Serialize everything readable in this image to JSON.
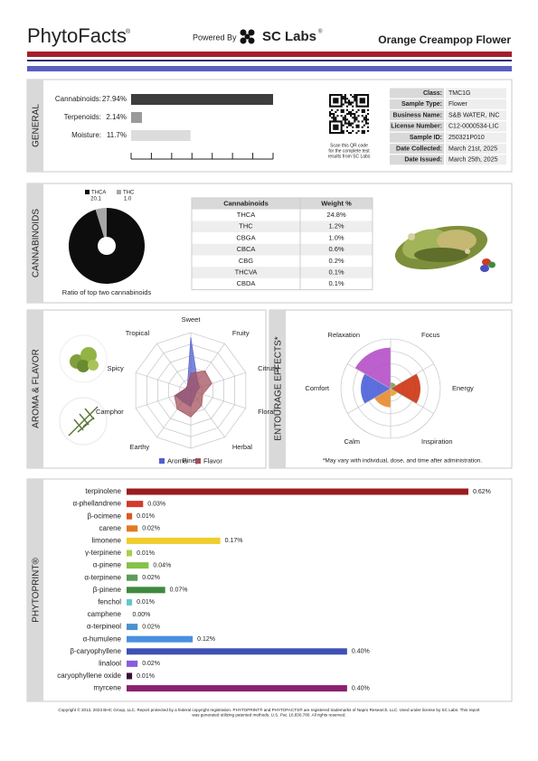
{
  "header": {
    "brand": "PhytoFacts",
    "brand_mark": "®",
    "powered_by": "Powered By",
    "lab": "SC Labs",
    "lab_mark": "®",
    "product": "Orange Creampop Flower"
  },
  "general": {
    "title": "GENERAL",
    "bars": [
      {
        "label": "Cannabinoids:",
        "value": 27.94,
        "value_label": "27.94%",
        "color": "#3d3d3d"
      },
      {
        "label": "Terpenoids:",
        "value": 2.14,
        "value_label": "2.14%",
        "color": "#9a9a9a"
      },
      {
        "label": "Moisture:",
        "value": 11.7,
        "value_label": "11.7%",
        "color": "#dcdcdc"
      }
    ],
    "qr_caption": [
      "Scan this QR code",
      "for the complete test",
      "results from SC Labs"
    ],
    "info": [
      {
        "label": "Class:",
        "value": "TMC1G"
      },
      {
        "label": "Sample Type:",
        "value": "Flower"
      },
      {
        "label": "Business Name:",
        "value": "S&B WATER, INC"
      },
      {
        "label": "License Number:",
        "value": "C12-0000534-LIC"
      },
      {
        "label": "Sample ID:",
        "value": "250321P010"
      },
      {
        "label": "Date Collected:",
        "value": "March 21st, 2025"
      },
      {
        "label": "Date Issued:",
        "value": "March 25th, 2025"
      }
    ]
  },
  "cannabinoids": {
    "title": "CANNABINOIDS",
    "pie": {
      "type": "pie",
      "categories": [
        "THCA",
        "THC"
      ],
      "values": [
        20.1,
        1.0
      ],
      "value_labels": [
        "20.1",
        "1.0"
      ],
      "colors": [
        "#0d0d0d",
        "#a6a6a6"
      ]
    },
    "caption": "Ratio of top two cannabinoids",
    "table": {
      "header": [
        "Cannabinoids",
        "Weight %"
      ],
      "rows": [
        [
          "THCA",
          "24.8%"
        ],
        [
          "THC",
          "1.2%"
        ],
        [
          "CBGA",
          "1.0%"
        ],
        [
          "CBCA",
          "0.6%"
        ],
        [
          "CBG",
          "0.2%"
        ],
        [
          "THCVA",
          "0.1%"
        ],
        [
          "CBDA",
          "0.1%"
        ]
      ]
    }
  },
  "aroma_flavor": {
    "title": "AROMA & FLAVOR",
    "type": "radar",
    "axes": [
      "Sweet",
      "Fruity",
      "Citrusy",
      "Floral",
      "Herbal",
      "Piney",
      "Earthy",
      "Camphor",
      "Spicy",
      "Tropical"
    ],
    "rlim": [
      0,
      5
    ],
    "rticks": [
      1,
      2,
      3,
      4,
      5
    ],
    "series": [
      {
        "name": "Aroma",
        "color": "#4f5fd0",
        "values": [
          4.6,
          1.0,
          0.8,
          0.5,
          0.6,
          1.4,
          1.2,
          1.4,
          0.5,
          0.5
        ]
      },
      {
        "name": "Flavor",
        "color": "#a3505c",
        "values": [
          1.5,
          2.1,
          1.9,
          1.1,
          1.6,
          2.3,
          2.0,
          1.5,
          0.5,
          0.5
        ]
      }
    ]
  },
  "entourage": {
    "title": "ENTOURAGE EFFECTS*",
    "type": "polar-area",
    "rlim": [
      0,
      4
    ],
    "rticks": [
      1,
      2,
      3,
      4
    ],
    "effects": [
      {
        "name": "Relaxation",
        "value": 3.3,
        "color": "#b54fc8"
      },
      {
        "name": "Focus",
        "value": 0.5,
        "color": "#6aa84f"
      },
      {
        "name": "Energy",
        "value": 2.4,
        "color": "#cc3311"
      },
      {
        "name": "Inspiration",
        "value": 0.6,
        "color": "#e0a526"
      },
      {
        "name": "Calm",
        "value": 1.5,
        "color": "#e88a2c"
      },
      {
        "name": "Comfort",
        "value": 2.4,
        "color": "#4a5fd8"
      }
    ],
    "note": "*May vary with individual, dose, and time after administration."
  },
  "phytoprint": {
    "title": "PHYTOPRINT®",
    "terpenes": [
      {
        "name": "terpinolene",
        "value": 0.62,
        "value_label": "0.62%",
        "color": "#9b1b1f"
      },
      {
        "name": "α-phellandrene",
        "value": 0.03,
        "value_label": "0.03%",
        "color": "#d23a2a"
      },
      {
        "name": "β-ocimene",
        "value": 0.01,
        "value_label": "0.01%",
        "color": "#e0561e"
      },
      {
        "name": "carene",
        "value": 0.02,
        "value_label": "0.02%",
        "color": "#e27a22"
      },
      {
        "name": "limonene",
        "value": 0.17,
        "value_label": "0.17%",
        "color": "#efcd2c"
      },
      {
        "name": "γ-terpinene",
        "value": 0.01,
        "value_label": "0.01%",
        "color": "#a9d04f"
      },
      {
        "name": "α-pinene",
        "value": 0.04,
        "value_label": "0.04%",
        "color": "#86c14a"
      },
      {
        "name": "α-terpinene",
        "value": 0.02,
        "value_label": "0.02%",
        "color": "#5c9c5e"
      },
      {
        "name": "β-pinene",
        "value": 0.07,
        "value_label": "0.07%",
        "color": "#3e8a3f"
      },
      {
        "name": "fenchol",
        "value": 0.01,
        "value_label": "0.01%",
        "color": "#62c6cf"
      },
      {
        "name": "camphene",
        "value": 0.0,
        "value_label": "0.00%",
        "color": "#47a0c8"
      },
      {
        "name": "α-terpineol",
        "value": 0.02,
        "value_label": "0.02%",
        "color": "#4a92cf"
      },
      {
        "name": "α-humulene",
        "value": 0.12,
        "value_label": "0.12%",
        "color": "#4a8fe0"
      },
      {
        "name": "β-caryophyllene",
        "value": 0.4,
        "value_label": "0.40%",
        "color": "#3f51b5"
      },
      {
        "name": "linalool",
        "value": 0.02,
        "value_label": "0.02%",
        "color": "#8a5ce0"
      },
      {
        "name": "caryophyllene oxide",
        "value": 0.01,
        "value_label": "0.01%",
        "color": "#3a1030"
      },
      {
        "name": "myrcene",
        "value": 0.4,
        "value_label": "0.40%",
        "color": "#8a2070"
      }
    ]
  },
  "footer": [
    "Copyright © 2013, 2023 BHC Group, LLC. Report protected by a federal copyright registration. PHYTOPRINT® and PHYTOFACTS® are registered trademarks of Napro Research, LLC. Used under license by SC Labs. This report",
    "was generated utilizing patented methods. U.S. Pat. 10,830,780. All rights reserved."
  ]
}
